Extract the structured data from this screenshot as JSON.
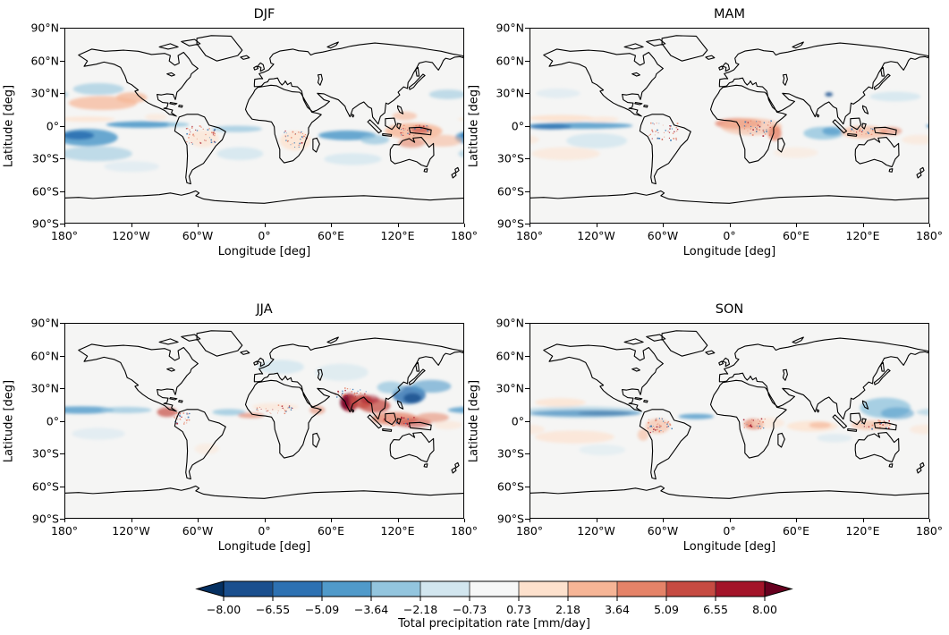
{
  "axes": {
    "xlabel": "Longitude [deg]",
    "ylabel": "Latitude [deg]",
    "xticks": [
      "180°",
      "120°W",
      "60°W",
      "0°",
      "60°E",
      "120°E",
      "180°"
    ],
    "yticks": [
      "90°N",
      "60°N",
      "30°N",
      "0°",
      "30°S",
      "60°S",
      "90°S"
    ]
  },
  "colorbar": {
    "label": "Total precipitation rate [mm/day]",
    "tick_labels": [
      "−8.00",
      "−6.55",
      "−5.09",
      "−3.64",
      "−2.18",
      "−0.73",
      "0.73",
      "2.18",
      "3.64",
      "5.09",
      "6.55",
      "8.00"
    ],
    "extend": "both"
  },
  "chart_data": {
    "type": "heatmap",
    "subtype": "seasonal global anomaly maps, equirectangular (PlateCarree) projection with coastlines",
    "variable": "Total precipitation rate [mm/day]",
    "xlabel": "Longitude [deg]",
    "ylabel": "Latitude [deg]",
    "xlim": [
      -180,
      180
    ],
    "ylim": [
      -90,
      90
    ],
    "xtick_values": [
      -180,
      -120,
      -60,
      0,
      60,
      120,
      180
    ],
    "ytick_values": [
      90,
      60,
      30,
      0,
      -30,
      -60,
      -90
    ],
    "colormap": {
      "name": "RdBu_r discrete, extend both",
      "levels": [
        -8.0,
        -6.55,
        -5.09,
        -3.64,
        -2.18,
        -0.73,
        0.73,
        2.18,
        3.64,
        5.09,
        6.55,
        8.0
      ],
      "colors": [
        "#053061",
        "#1a4f8e",
        "#2d71b2",
        "#509aca",
        "#93c5de",
        "#d2e6ef",
        "#f6f7f7",
        "#fde1cd",
        "#f6b596",
        "#e58368",
        "#c64b42",
        "#a31429",
        "#67001f"
      ]
    },
    "panels": [
      {
        "title": "DJF",
        "features": [
          [
            -160,
            -11,
            55,
            16,
            3,
            0.85
          ],
          [
            -168,
            -9,
            28,
            8,
            2,
            0.9
          ],
          [
            -152,
            -26,
            65,
            14,
            4,
            0.55
          ],
          [
            -111,
            1,
            64,
            6,
            3,
            0.9
          ],
          [
            -78,
            1,
            20,
            4,
            4,
            0.8
          ],
          [
            -160,
            6,
            50,
            5,
            7,
            0.7
          ],
          [
            -146,
            21,
            62,
            13,
            8,
            0.7
          ],
          [
            -120,
            26,
            28,
            10,
            8,
            0.75
          ],
          [
            -98,
            8,
            20,
            6,
            7,
            0.5
          ],
          [
            -150,
            34,
            46,
            11,
            4,
            0.6
          ],
          [
            166,
            29,
            34,
            9,
            4,
            0.55
          ],
          [
            75,
            -9,
            52,
            9,
            3,
            0.85
          ],
          [
            100,
            -13,
            26,
            9,
            4,
            0.7
          ],
          [
            -25,
            -3,
            46,
            6,
            4,
            0.7
          ],
          [
            135,
            -5,
            52,
            15,
            8,
            0.8
          ],
          [
            141,
            -4,
            18,
            7,
            10,
            0.65
          ],
          [
            127,
            9,
            22,
            8,
            8,
            0.6
          ],
          [
            161,
            -14,
            36,
            11,
            8,
            0.55
          ],
          [
            28,
            -14,
            28,
            18,
            7,
            0.75
          ],
          [
            -55,
            -12,
            28,
            16,
            7,
            0.6
          ],
          [
            133,
            -16,
            24,
            9,
            9,
            0.6
          ],
          [
            -22,
            -26,
            42,
            12,
            5,
            0.8
          ],
          [
            80,
            -31,
            52,
            11,
            5,
            0.75
          ],
          [
            -120,
            -38,
            50,
            10,
            5,
            0.5
          ]
        ],
        "speckles": [
          [
            -58,
            -8,
            26,
            18,
            45
          ],
          [
            27,
            -12,
            22,
            16,
            35
          ],
          [
            137,
            -4,
            30,
            10,
            30
          ]
        ]
      },
      {
        "title": "MAM",
        "features": [
          [
            -135,
            0,
            95,
            6,
            3,
            0.85
          ],
          [
            -162,
            -1,
            38,
            5,
            2,
            0.8
          ],
          [
            -152,
            7,
            58,
            6,
            7,
            0.9
          ],
          [
            -115,
            6,
            30,
            5,
            7,
            0.6
          ],
          [
            -120,
            -14,
            55,
            14,
            5,
            0.8
          ],
          [
            -148,
            -26,
            62,
            12,
            7,
            0.55
          ],
          [
            8,
            2,
            42,
            10,
            9,
            0.75
          ],
          [
            20,
            -1,
            55,
            16,
            8,
            0.55
          ],
          [
            41,
            -7,
            12,
            14,
            9,
            0.8
          ],
          [
            85,
            -7,
            36,
            12,
            4,
            0.8
          ],
          [
            93,
            -5,
            18,
            8,
            3,
            0.7
          ],
          [
            122,
            -6,
            42,
            12,
            8,
            0.65
          ],
          [
            146,
            -5,
            20,
            8,
            9,
            0.55
          ],
          [
            150,
            27,
            46,
            9,
            5,
            0.8
          ],
          [
            -155,
            30,
            40,
            9,
            5,
            0.5
          ],
          [
            172,
            -13,
            32,
            9,
            7,
            0.5
          ],
          [
            60,
            -25,
            40,
            10,
            7,
            0.4
          ],
          [
            90,
            29,
            7,
            4,
            1,
            0.85
          ]
        ],
        "speckles": [
          [
            -60,
            -5,
            26,
            16,
            45
          ],
          [
            25,
            -2,
            26,
            14,
            45
          ],
          [
            120,
            -5,
            24,
            8,
            25
          ]
        ]
      },
      {
        "title": "JJA",
        "features": [
          [
            77,
            17,
            16,
            17,
            11,
            0.85
          ],
          [
            73,
            17,
            9,
            13,
            12,
            0.6
          ],
          [
            88,
            18,
            20,
            13,
            10,
            0.8
          ],
          [
            100,
            14,
            28,
            13,
            10,
            0.75
          ],
          [
            95,
            20,
            18,
            8,
            11,
            0.5
          ],
          [
            118,
            2,
            42,
            12,
            9,
            0.75
          ],
          [
            135,
            -2,
            32,
            9,
            10,
            0.6
          ],
          [
            152,
            3,
            30,
            9,
            9,
            0.55
          ],
          [
            131,
            24,
            30,
            17,
            2,
            0.8
          ],
          [
            134,
            21,
            16,
            9,
            1,
            0.8
          ],
          [
            151,
            32,
            36,
            12,
            3,
            0.6
          ],
          [
            114,
            31,
            24,
            11,
            4,
            0.7
          ],
          [
            -165,
            10,
            58,
            7,
            3,
            0.8
          ],
          [
            -125,
            10,
            46,
            6,
            4,
            0.7
          ],
          [
            -88,
            8,
            18,
            9,
            10,
            0.7
          ],
          [
            -32,
            8,
            30,
            6,
            4,
            0.75
          ],
          [
            -12,
            5,
            24,
            5,
            9,
            0.65
          ],
          [
            10,
            13,
            42,
            7,
            7,
            0.55
          ],
          [
            48,
            10,
            14,
            8,
            9,
            0.55
          ],
          [
            15,
            50,
            42,
            13,
            5,
            0.8
          ],
          [
            70,
            45,
            48,
            16,
            5,
            0.6
          ],
          [
            -150,
            -12,
            48,
            11,
            5,
            0.5
          ],
          [
            166,
            -4,
            26,
            8,
            7,
            0.5
          ],
          [
            -52,
            -26,
            22,
            10,
            7,
            0.4
          ]
        ],
        "speckles": [
          [
            77,
            26,
            30,
            10,
            40
          ],
          [
            -75,
            3,
            14,
            11,
            35
          ],
          [
            10,
            11,
            36,
            8,
            30
          ],
          [
            122,
            0,
            30,
            10,
            25
          ]
        ]
      },
      {
        "title": "SON",
        "features": [
          [
            -130,
            7,
            100,
            6,
            2,
            0.85
          ],
          [
            -113,
            7,
            48,
            4,
            1,
            0.9
          ],
          [
            -135,
            8,
            112,
            11,
            4,
            0.5
          ],
          [
            -30,
            4,
            32,
            5,
            3,
            0.8
          ],
          [
            141,
            12,
            46,
            19,
            4,
            0.8
          ],
          [
            152,
            7,
            30,
            11,
            3,
            0.55
          ],
          [
            -153,
            17,
            46,
            8,
            7,
            0.7
          ],
          [
            -140,
            -15,
            72,
            12,
            7,
            0.65
          ],
          [
            178,
            -8,
            30,
            9,
            7,
            0.5
          ],
          [
            -65,
            -5,
            22,
            14,
            8,
            0.55
          ],
          [
            -78,
            -13,
            10,
            11,
            8,
            0.55
          ],
          [
            22,
            -3,
            18,
            10,
            9,
            0.7
          ],
          [
            35,
            -2,
            30,
            10,
            7,
            0.5
          ],
          [
            75,
            -5,
            46,
            10,
            7,
            0.75
          ],
          [
            82,
            -4,
            20,
            6,
            8,
            0.65
          ],
          [
            128,
            -4,
            36,
            9,
            8,
            0.6
          ],
          [
            95,
            -16,
            32,
            8,
            5,
            0.55
          ],
          [
            -115,
            -27,
            42,
            10,
            5,
            0.45
          ]
        ],
        "speckles": [
          [
            -63,
            -4,
            22,
            14,
            45
          ],
          [
            22,
            -2,
            20,
            10,
            30
          ],
          [
            131,
            -3,
            28,
            8,
            30
          ]
        ]
      }
    ]
  }
}
